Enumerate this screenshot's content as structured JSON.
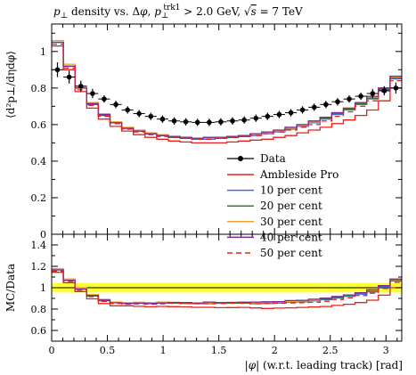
{
  "chart_data": {
    "type": "line",
    "title": "p⊥ density vs. Δφ, p⊥trk1 > 2.0 GeV, √s = 7 TeV",
    "title_parts": {
      "a": "p",
      "a_sub": "⊥",
      "b": " density vs. Δ",
      "c": "φ",
      "d": ", ",
      "e": "p",
      "e_sub": "⊥",
      "e_sup": "trk1",
      "f": " > 2.0 GeV, ",
      "g": "√",
      "h": "s",
      "i": " = 7 TeV"
    },
    "xlabel": "|φ| (w.r.t. leading track) [rad]",
    "xlabel_parts": {
      "a": "|",
      "b": "φ",
      "c": "|",
      "d": " (w.r.t. leading track) [rad]"
    },
    "ylabel": "⟨d²p⊥/dηdφ⟩",
    "ratio_ylabel": "MC/Data",
    "xlim": [
      0,
      3.14159
    ],
    "ylim": [
      0,
      1.15
    ],
    "ratio_ylim": [
      0.5,
      1.5
    ],
    "x_ticks": [
      "0",
      "0.5",
      "1",
      "1.5",
      "2",
      "2.5",
      "3"
    ],
    "y_ticks": [
      "0",
      "0.2",
      "0.4",
      "0.6",
      "0.8",
      "1"
    ],
    "ratio_y_ticks": [
      "0.6",
      "0.8",
      "1",
      "1.2",
      "1.4"
    ],
    "legend_position": "center-right",
    "bin_edges": [
      0,
      0.1047,
      0.2094,
      0.3142,
      0.4189,
      0.5236,
      0.6283,
      0.733,
      0.8378,
      0.9425,
      1.0472,
      1.1519,
      1.2566,
      1.3614,
      1.4661,
      1.5708,
      1.6755,
      1.7802,
      1.885,
      1.9897,
      2.0944,
      2.1991,
      2.3038,
      2.4086,
      2.5133,
      2.618,
      2.7227,
      2.8274,
      2.9322,
      3.0369,
      3.1416
    ],
    "data": {
      "name": "Data",
      "x": [
        0.052,
        0.157,
        0.262,
        0.367,
        0.471,
        0.576,
        0.681,
        0.785,
        0.89,
        0.995,
        1.1,
        1.204,
        1.309,
        1.414,
        1.518,
        1.623,
        1.728,
        1.833,
        1.937,
        2.042,
        2.147,
        2.251,
        2.356,
        2.461,
        2.566,
        2.67,
        2.775,
        2.88,
        2.985,
        3.089
      ],
      "y": [
        0.9,
        0.86,
        0.81,
        0.77,
        0.74,
        0.71,
        0.68,
        0.66,
        0.645,
        0.63,
        0.62,
        0.615,
        0.612,
        0.612,
        0.615,
        0.62,
        0.625,
        0.635,
        0.645,
        0.655,
        0.665,
        0.68,
        0.695,
        0.71,
        0.725,
        0.74,
        0.755,
        0.77,
        0.785,
        0.8
      ],
      "yerr": [
        0.04,
        0.035,
        0.03,
        0.025,
        0.02,
        0.02,
        0.02,
        0.02,
        0.02,
        0.02,
        0.02,
        0.02,
        0.02,
        0.02,
        0.02,
        0.02,
        0.02,
        0.02,
        0.02,
        0.02,
        0.02,
        0.02,
        0.02,
        0.02,
        0.02,
        0.02,
        0.02,
        0.025,
        0.025,
        0.03
      ]
    },
    "series": [
      {
        "name": "Ambleside Pro",
        "color": "#e8201a",
        "dash": "",
        "values": [
          1.03,
          0.9,
          0.78,
          0.69,
          0.63,
          0.59,
          0.565,
          0.545,
          0.53,
          0.52,
          0.51,
          0.505,
          0.5,
          0.5,
          0.5,
          0.505,
          0.51,
          0.515,
          0.52,
          0.53,
          0.54,
          0.555,
          0.57,
          0.585,
          0.605,
          0.625,
          0.65,
          0.68,
          0.73,
          0.8
        ]
      },
      {
        "name": "10 per cent",
        "color": "#3a6fe0",
        "dash": "",
        "values": [
          1.05,
          0.92,
          0.8,
          0.71,
          0.65,
          0.61,
          0.58,
          0.565,
          0.55,
          0.54,
          0.53,
          0.525,
          0.52,
          0.52,
          0.525,
          0.53,
          0.535,
          0.54,
          0.55,
          0.56,
          0.575,
          0.59,
          0.61,
          0.63,
          0.655,
          0.68,
          0.71,
          0.74,
          0.79,
          0.85
        ]
      },
      {
        "name": "20 per cent",
        "color": "#2f7d2f",
        "dash": "",
        "values": [
          1.05,
          0.92,
          0.8,
          0.71,
          0.65,
          0.61,
          0.58,
          0.565,
          0.55,
          0.54,
          0.53,
          0.525,
          0.525,
          0.525,
          0.53,
          0.53,
          0.535,
          0.545,
          0.555,
          0.565,
          0.58,
          0.595,
          0.615,
          0.635,
          0.66,
          0.685,
          0.715,
          0.745,
          0.795,
          0.855
        ]
      },
      {
        "name": "30 per cent",
        "color": "#f0a030",
        "dash": "",
        "values": [
          1.06,
          0.93,
          0.81,
          0.72,
          0.66,
          0.615,
          0.585,
          0.57,
          0.555,
          0.545,
          0.535,
          0.53,
          0.525,
          0.525,
          0.53,
          0.535,
          0.54,
          0.545,
          0.555,
          0.565,
          0.58,
          0.595,
          0.615,
          0.64,
          0.665,
          0.69,
          0.72,
          0.75,
          0.8,
          0.86
        ]
      },
      {
        "name": "40 per cent",
        "color": "#7a2a9a",
        "dash": "",
        "values": [
          1.05,
          0.92,
          0.8,
          0.715,
          0.655,
          0.61,
          0.58,
          0.565,
          0.55,
          0.54,
          0.535,
          0.53,
          0.525,
          0.53,
          0.53,
          0.535,
          0.54,
          0.55,
          0.56,
          0.57,
          0.585,
          0.6,
          0.62,
          0.64,
          0.665,
          0.69,
          0.72,
          0.755,
          0.8,
          0.865
        ]
      },
      {
        "name": "50 per cent",
        "color": "#e8201a",
        "dash": "6,4",
        "values": [
          1.04,
          0.91,
          0.79,
          0.705,
          0.645,
          0.605,
          0.575,
          0.56,
          0.545,
          0.535,
          0.53,
          0.525,
          0.52,
          0.52,
          0.525,
          0.53,
          0.535,
          0.54,
          0.55,
          0.56,
          0.57,
          0.585,
          0.6,
          0.62,
          0.645,
          0.67,
          0.7,
          0.73,
          0.78,
          0.84
        ]
      }
    ]
  }
}
